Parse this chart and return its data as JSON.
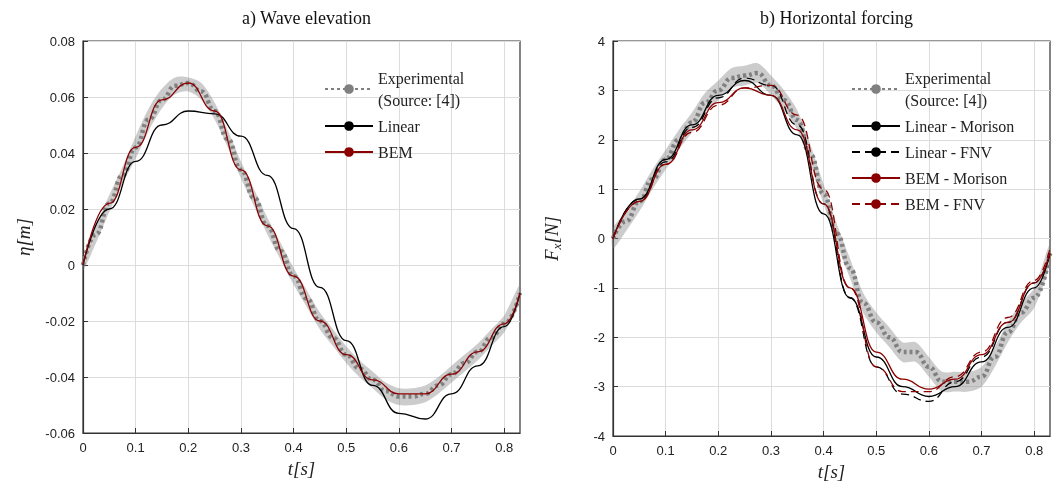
{
  "chart_data": [
    {
      "type": "line",
      "title": "a) Wave elevation",
      "xlabel": "t[s]",
      "ylabel": "η[m]",
      "xlim": [
        0,
        0.83
      ],
      "xticks": [
        0,
        0.1,
        0.2,
        0.3,
        0.4,
        0.5,
        0.6,
        0.7,
        0.8
      ],
      "ylim": [
        -0.06,
        0.08
      ],
      "yticks": [
        -0.06,
        -0.04,
        -0.02,
        0,
        0.02,
        0.04,
        0.06,
        0.08
      ],
      "grid": true,
      "legend": "top right",
      "x": [
        0,
        0.05,
        0.1,
        0.15,
        0.2,
        0.25,
        0.3,
        0.35,
        0.4,
        0.45,
        0.5,
        0.55,
        0.6,
        0.65,
        0.7,
        0.75,
        0.8,
        0.83
      ],
      "series": [
        {
          "name": "Experimental (Source: [4])",
          "color": "#808080",
          "line_style": "dotted",
          "x": [
            0,
            0.025,
            0.05,
            0.075,
            0.1,
            0.125,
            0.15,
            0.175,
            0.2,
            0.225,
            0.25,
            0.275,
            0.3,
            0.325,
            0.35,
            0.375,
            0.4,
            0.425,
            0.45,
            0.475,
            0.5,
            0.525,
            0.55,
            0.575,
            0.6,
            0.625,
            0.65,
            0.675,
            0.7,
            0.725,
            0.75,
            0.775,
            0.8,
            0.83
          ],
          "values": [
            0,
            0.011,
            0.022,
            0.032,
            0.042,
            0.052,
            0.059,
            0.064,
            0.065,
            0.062,
            0.055,
            0.045,
            0.034,
            0.024,
            0.014,
            0.005,
            -0.004,
            -0.012,
            -0.02,
            -0.026,
            -0.032,
            -0.037,
            -0.041,
            -0.045,
            -0.047,
            -0.047,
            -0.046,
            -0.043,
            -0.039,
            -0.035,
            -0.031,
            -0.026,
            -0.021,
            -0.01
          ],
          "lower": [
            -0.002,
            0.008,
            0.019,
            0.029,
            0.038,
            0.048,
            0.056,
            0.061,
            0.062,
            0.059,
            0.052,
            0.042,
            0.031,
            0.021,
            0.011,
            0.002,
            -0.007,
            -0.015,
            -0.023,
            -0.029,
            -0.035,
            -0.04,
            -0.044,
            -0.048,
            -0.05,
            -0.05,
            -0.049,
            -0.046,
            -0.042,
            -0.038,
            -0.034,
            -0.029,
            -0.024,
            -0.013
          ],
          "upper": [
            0.002,
            0.014,
            0.025,
            0.035,
            0.046,
            0.056,
            0.063,
            0.067,
            0.067,
            0.065,
            0.058,
            0.048,
            0.037,
            0.027,
            0.017,
            0.008,
            -0.001,
            -0.009,
            -0.017,
            -0.023,
            -0.029,
            -0.034,
            -0.038,
            -0.042,
            -0.044,
            -0.044,
            -0.043,
            -0.04,
            -0.036,
            -0.032,
            -0.028,
            -0.023,
            -0.018,
            -0.007
          ]
        },
        {
          "name": "Linear",
          "color": "#000000",
          "line_style": "solid",
          "values": [
            0,
            0.02,
            0.037,
            0.05,
            0.055,
            0.054,
            0.046,
            0.032,
            0.013,
            -0.008,
            -0.027,
            -0.043,
            -0.053,
            -0.055,
            -0.046,
            -0.036,
            -0.022,
            -0.01
          ]
        },
        {
          "name": "BEM",
          "color": "#8b0000",
          "line_style": "solid",
          "values": [
            0,
            0.022,
            0.042,
            0.059,
            0.065,
            0.055,
            0.034,
            0.014,
            -0.004,
            -0.02,
            -0.032,
            -0.041,
            -0.046,
            -0.046,
            -0.039,
            -0.031,
            -0.021,
            -0.01
          ]
        }
      ]
    },
    {
      "type": "line",
      "title": "b) Horizontal forcing",
      "xlabel": "t[s]",
      "ylabel": "F$_{x}$[N]",
      "xlim": [
        0,
        0.83
      ],
      "xticks": [
        0,
        0.1,
        0.2,
        0.3,
        0.4,
        0.5,
        0.6,
        0.7,
        0.8
      ],
      "ylim": [
        -4,
        4
      ],
      "yticks": [
        -4,
        -3,
        -2,
        -1,
        0,
        1,
        2,
        3,
        4
      ],
      "grid": true,
      "legend": "top right",
      "x": [
        0,
        0.05,
        0.1,
        0.15,
        0.2,
        0.25,
        0.3,
        0.35,
        0.4,
        0.45,
        0.5,
        0.55,
        0.6,
        0.65,
        0.7,
        0.75,
        0.8,
        0.83
      ],
      "series": [
        {
          "name": "Experimental (Source: [4])",
          "color": "#808080",
          "line_style": "dotted",
          "x": [
            0,
            0.025,
            0.05,
            0.075,
            0.1,
            0.125,
            0.15,
            0.175,
            0.2,
            0.225,
            0.25,
            0.275,
            0.3,
            0.325,
            0.35,
            0.375,
            0.4,
            0.425,
            0.45,
            0.475,
            0.5,
            0.525,
            0.55,
            0.575,
            0.6,
            0.625,
            0.65,
            0.675,
            0.7,
            0.725,
            0.75,
            0.775,
            0.8,
            0.83
          ],
          "values": [
            0,
            0.35,
            0.75,
            1.2,
            1.6,
            2.0,
            2.35,
            2.75,
            3.0,
            3.25,
            3.3,
            3.35,
            3.1,
            2.8,
            2.4,
            1.7,
            0.9,
            0.1,
            -0.6,
            -1.3,
            -1.7,
            -2.0,
            -2.3,
            -2.3,
            -2.6,
            -2.9,
            -2.9,
            -2.9,
            -2.8,
            -2.4,
            -1.9,
            -1.5,
            -1.2,
            -0.3
          ],
          "lower": [
            -0.2,
            0.15,
            0.55,
            1.0,
            1.4,
            1.8,
            2.15,
            2.55,
            2.8,
            3.05,
            3.1,
            3.15,
            2.9,
            2.6,
            2.2,
            1.5,
            0.7,
            -0.1,
            -0.8,
            -1.5,
            -1.9,
            -2.2,
            -2.5,
            -2.5,
            -2.8,
            -3.1,
            -3.1,
            -3.1,
            -3.0,
            -2.6,
            -2.1,
            -1.7,
            -1.4,
            -0.5
          ],
          "upper": [
            0.2,
            0.55,
            0.95,
            1.4,
            1.8,
            2.2,
            2.55,
            2.95,
            3.2,
            3.45,
            3.5,
            3.55,
            3.3,
            3.0,
            2.6,
            1.9,
            1.1,
            0.3,
            -0.4,
            -1.1,
            -1.5,
            -1.8,
            -2.1,
            -2.1,
            -2.4,
            -2.7,
            -2.7,
            -2.7,
            -2.6,
            -2.2,
            -1.7,
            -1.3,
            -1.0,
            -0.1
          ]
        },
        {
          "name": "Linear - Morison",
          "color": "#000000",
          "line_style": "solid",
          "values": [
            0,
            0.8,
            1.6,
            2.3,
            2.9,
            3.2,
            2.9,
            2.1,
            0.5,
            -1.2,
            -2.4,
            -3.0,
            -3.2,
            -3.0,
            -2.5,
            -1.8,
            -1.0,
            -0.3
          ]
        },
        {
          "name": "Linear - FNV",
          "color": "#000000",
          "line_style": "dashed",
          "values": [
            0,
            0.8,
            1.55,
            2.25,
            2.85,
            3.25,
            3.1,
            2.3,
            0.7,
            -1.2,
            -2.6,
            -3.15,
            -3.3,
            -2.9,
            -2.4,
            -1.7,
            -0.9,
            -0.3
          ]
        },
        {
          "name": "BEM - Morison",
          "color": "#8b0000",
          "line_style": "solid",
          "values": [
            0,
            0.75,
            1.5,
            2.2,
            2.75,
            3.05,
            2.9,
            2.2,
            0.7,
            -1.0,
            -2.3,
            -2.85,
            -3.05,
            -2.85,
            -2.35,
            -1.7,
            -0.9,
            -0.3
          ]
        },
        {
          "name": "BEM - FNV",
          "color": "#8b0000",
          "line_style": "dashed",
          "values": [
            0,
            0.75,
            1.5,
            2.15,
            2.7,
            3.05,
            3.1,
            2.5,
            1.0,
            -1.0,
            -2.6,
            -3.1,
            -3.1,
            -2.8,
            -2.3,
            -1.6,
            -0.85,
            -0.2
          ]
        }
      ]
    }
  ]
}
